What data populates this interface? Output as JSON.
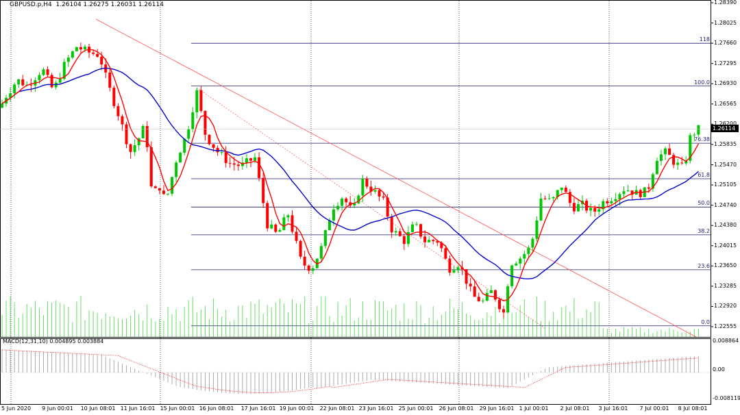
{
  "header": {
    "symbol_tf": "GBPUSD.p,H4",
    "ohlc": "1.26104 1.26275 1.26031 1.26114"
  },
  "current_price": "1.26114",
  "price_axis": [
    "1.28390",
    "1.28025",
    "1.27660",
    "1.27295",
    "1.26930",
    "1.26565",
    "1.26200",
    "1.25835",
    "1.25470",
    "1.25105",
    "1.24740",
    "1.24380",
    "1.24015",
    "1.23650",
    "1.23285",
    "1.22920",
    "1.22555"
  ],
  "fibonacci": [
    {
      "label": "118",
      "price": 1.2766
    },
    {
      "label": "100.0",
      "price": 1.2689
    },
    {
      "label": "76.38",
      "price": 1.2586
    },
    {
      "label": "61.8",
      "price": 1.2522
    },
    {
      "label": "50.0",
      "price": 1.2471
    },
    {
      "label": "38.2",
      "price": 1.2421
    },
    {
      "label": "23.6",
      "price": 1.2358
    },
    {
      "label": "0.0",
      "price": 1.2257
    }
  ],
  "time_axis": [
    "5 Jun 2020",
    "9 Jun 00:01",
    "10 Jun 08:01",
    "11 Jun 16:01",
    "15 Jun 00:01",
    "16 Jun 08:01",
    "17 Jun 16:01",
    "19 Jun 00:01",
    "22 Jun 08:01",
    "23 Jun 16:01",
    "25 Jun 00:01",
    "26 Jun 08:01",
    "29 Jun 16:01",
    "1 Jul 00:01",
    "2 Jul 08:01",
    "3 Jul 16:01",
    "7 Jul 00:01",
    "8 Jul 08:01"
  ],
  "macd": {
    "label": "MACD(12,31,10) 0.004895 0.003884",
    "axis": [
      "0.008864",
      "0.00",
      "-0.008119"
    ]
  },
  "colors": {
    "bull": "#00c800",
    "bear": "#ff0000",
    "ma_fast": "#ff0000",
    "ma_slow": "#0000cc",
    "fib_line": "#1a1a6e",
    "volume": "#00c800"
  }
}
